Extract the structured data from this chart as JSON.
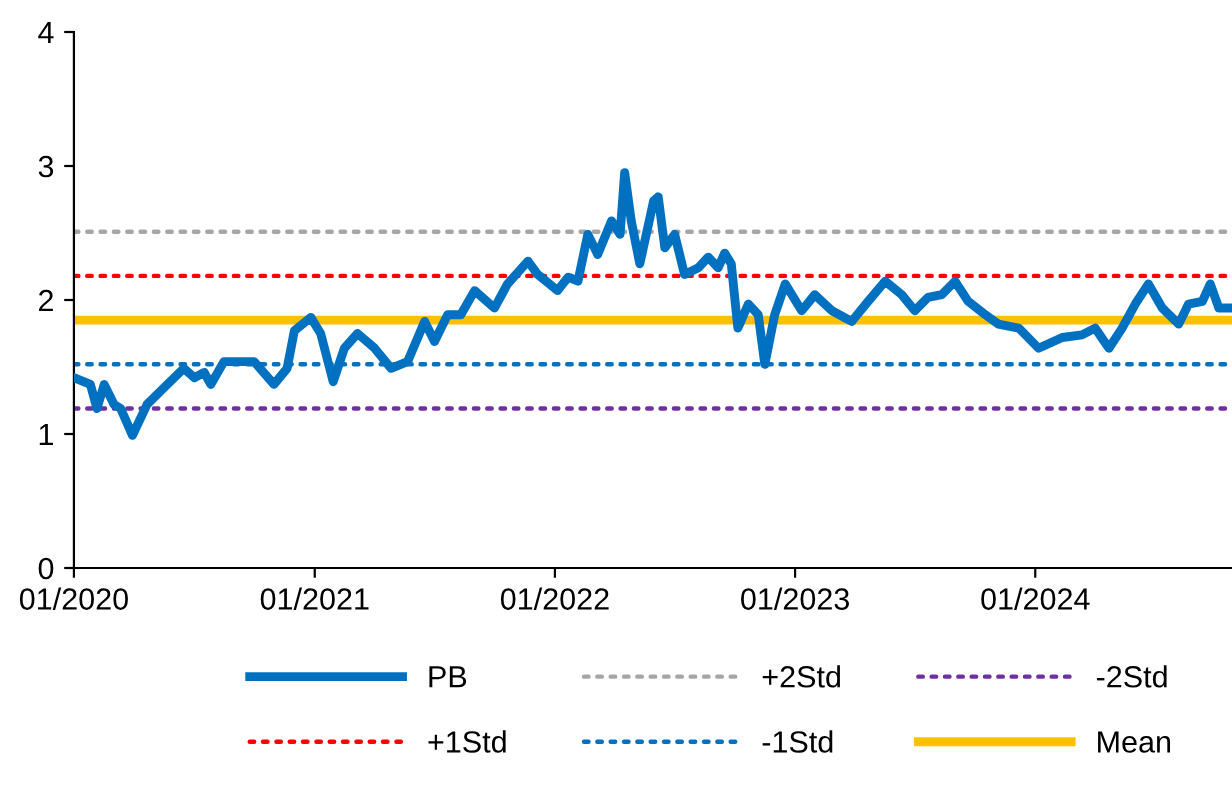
{
  "chart_data": {
    "type": "line",
    "legend": "bottom",
    "grid": false,
    "xlim": [
      "2020-01-01",
      "2024-10-26"
    ],
    "ylim": [
      0,
      4
    ],
    "yticks": [
      0,
      1,
      2,
      3,
      4
    ],
    "xticks": [
      {
        "value": "2020-01-01",
        "label": "01/2020"
      },
      {
        "value": "2021-01-01",
        "label": "01/2021"
      },
      {
        "value": "2022-01-01",
        "label": "01/2022"
      },
      {
        "value": "2023-01-01",
        "label": "01/2023"
      },
      {
        "value": "2024-01-01",
        "label": "01/2024"
      }
    ],
    "series": [
      {
        "name": "PB",
        "color": "#0070c0",
        "line_style": "solid",
        "x": [
          "2020-01-01",
          "2020-01-26",
          "2020-02-05",
          "2020-02-16",
          "2020-03-02",
          "2020-03-12",
          "2020-03-30",
          "2020-04-21",
          "2020-05-22",
          "2020-06-16",
          "2020-07-02",
          "2020-07-17",
          "2020-07-27",
          "2020-08-16",
          "2020-09-11",
          "2020-10-01",
          "2020-10-31",
          "2020-11-20",
          "2020-12-01",
          "2020-12-26",
          "2021-01-10",
          "2021-01-29",
          "2021-02-15",
          "2021-03-07",
          "2021-04-02",
          "2021-04-27",
          "2021-05-22",
          "2021-06-17",
          "2021-07-02",
          "2021-07-22",
          "2021-08-11",
          "2021-09-01",
          "2021-10-01",
          "2021-10-21",
          "2021-11-21",
          "2021-12-06",
          "2022-01-05",
          "2022-01-21",
          "2022-02-05",
          "2022-02-20",
          "2022-03-07",
          "2022-03-28",
          "2022-04-10",
          "2022-04-17",
          "2022-04-27",
          "2022-05-10",
          "2022-05-31",
          "2022-06-07",
          "2022-06-17",
          "2022-07-02",
          "2022-07-17",
          "2022-08-07",
          "2022-08-22",
          "2022-09-06",
          "2022-09-16",
          "2022-09-26",
          "2022-10-06",
          "2022-10-22",
          "2022-11-06",
          "2022-11-16",
          "2022-12-01",
          "2022-12-17",
          "2023-01-11",
          "2023-01-31",
          "2023-02-26",
          "2023-03-28",
          "2023-04-22",
          "2023-05-18",
          "2023-06-12",
          "2023-07-02",
          "2023-07-22",
          "2023-08-12",
          "2023-09-01",
          "2023-09-21",
          "2023-10-17",
          "2023-11-06",
          "2023-12-07",
          "2024-01-06",
          "2024-02-11",
          "2024-03-12",
          "2024-04-01",
          "2024-04-22",
          "2024-05-12",
          "2024-06-01",
          "2024-06-21",
          "2024-07-12",
          "2024-08-06",
          "2024-08-21",
          "2024-09-11",
          "2024-09-23",
          "2024-10-06",
          "2024-10-26"
        ],
        "values": [
          1.42,
          1.37,
          1.19,
          1.37,
          1.22,
          1.19,
          0.99,
          1.22,
          1.37,
          1.49,
          1.42,
          1.46,
          1.37,
          1.54,
          1.54,
          1.54,
          1.37,
          1.49,
          1.77,
          1.87,
          1.75,
          1.39,
          1.64,
          1.75,
          1.64,
          1.49,
          1.54,
          1.84,
          1.69,
          1.89,
          1.89,
          2.07,
          1.94,
          2.12,
          2.29,
          2.19,
          2.07,
          2.17,
          2.14,
          2.49,
          2.34,
          2.59,
          2.49,
          2.95,
          2.59,
          2.27,
          2.74,
          2.77,
          2.39,
          2.49,
          2.19,
          2.24,
          2.32,
          2.24,
          2.35,
          2.27,
          1.79,
          1.97,
          1.89,
          1.52,
          1.89,
          2.12,
          1.92,
          2.04,
          1.92,
          1.84,
          1.99,
          2.14,
          2.04,
          1.92,
          2.02,
          2.04,
          2.14,
          1.99,
          1.89,
          1.82,
          1.79,
          1.64,
          1.72,
          1.74,
          1.79,
          1.64,
          1.79,
          1.97,
          2.12,
          1.94,
          1.82,
          1.97,
          1.99,
          2.12,
          1.94,
          1.94
        ]
      },
      {
        "name": "+1Std",
        "color": "#ff0000",
        "line_style": "dotted",
        "x": [
          "2020-01-01",
          "2024-10-26"
        ],
        "values": [
          2.18,
          2.18
        ]
      },
      {
        "name": "+2Std",
        "color": "#a6a6a6",
        "line_style": "dotted",
        "x": [
          "2020-01-01",
          "2024-10-26"
        ],
        "values": [
          2.51,
          2.51
        ]
      },
      {
        "name": "-1Std",
        "color": "#0070c0",
        "line_style": "dotted",
        "x": [
          "2020-01-01",
          "2024-10-26"
        ],
        "values": [
          1.52,
          1.52
        ]
      },
      {
        "name": "-2Std",
        "color": "#7030a0",
        "line_style": "dotted",
        "x": [
          "2020-01-01",
          "2024-10-26"
        ],
        "values": [
          1.19,
          1.19
        ]
      },
      {
        "name": "Mean",
        "color": "#ffc000",
        "line_style": "solid",
        "x": [
          "2020-01-01",
          "2024-10-26"
        ],
        "values": [
          1.85,
          1.85
        ]
      }
    ]
  }
}
